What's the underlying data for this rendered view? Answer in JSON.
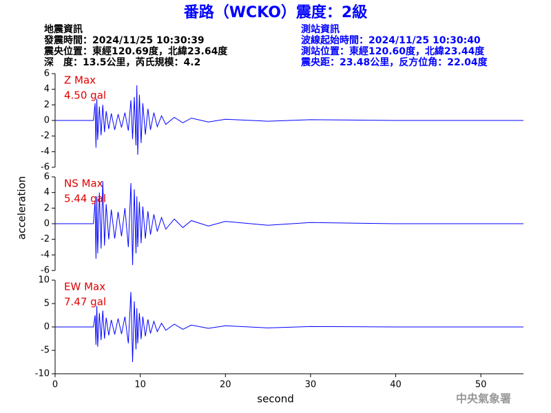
{
  "header": {
    "title": "番路（WCKO）震度：2級",
    "left_info": [
      "地震資訊",
      "發震時間：2024/11/25 10:30:39",
      "震央位置：東經120.69度，北緯23.64度",
      "深　度：13.5公里，芮氏規模：4.2"
    ],
    "right_info": [
      "測站資訊",
      "波線起始時間：2024/11/25 10:30:40",
      "測站位置：東經120.60度，北緯23.44度",
      "震央距：23.48公里，反方位角：22.04度"
    ]
  },
  "ylabel": "acceleration",
  "xlabel": "second",
  "footer": "中央氣象署",
  "chart_data": [
    {
      "type": "line",
      "annotations": [
        "Z Max",
        "4.50 gal"
      ],
      "color": "#0000ff",
      "xlim": [
        0,
        55
      ],
      "ylim": [
        -6,
        6
      ],
      "yticks": [
        -6,
        -4,
        -2,
        0,
        2,
        4,
        6
      ],
      "x": [
        0,
        4.5,
        4.7,
        4.8,
        4.9,
        5.0,
        5.2,
        5.4,
        5.6,
        5.8,
        6.0,
        6.3,
        6.6,
        7.0,
        7.4,
        7.8,
        8.2,
        8.6,
        8.9,
        9.1,
        9.3,
        9.5,
        9.6,
        9.7,
        9.9,
        10.1,
        10.3,
        10.6,
        10.9,
        11.2,
        11.6,
        12.0,
        12.5,
        13,
        14,
        15,
        16,
        18,
        20,
        25,
        30,
        40,
        55
      ],
      "values": [
        0,
        0,
        2.2,
        -3.5,
        2.8,
        -2.5,
        1.8,
        -1.9,
        2.0,
        -1.5,
        1.2,
        -1.1,
        0.9,
        -1.2,
        0.8,
        -0.9,
        1.0,
        -1.3,
        2.6,
        -2.4,
        3.0,
        -3.2,
        4.5,
        -4.4,
        3.3,
        -2.9,
        2.2,
        -1.8,
        1.5,
        -1.2,
        1.0,
        -0.8,
        0.6,
        -0.5,
        0.4,
        -0.3,
        0.3,
        -0.2,
        0.15,
        -0.1,
        0.1,
        0,
        0
      ]
    },
    {
      "type": "line",
      "annotations": [
        "NS Max",
        "5.44 gal"
      ],
      "color": "#0000ff",
      "xlim": [
        0,
        55
      ],
      "ylim": [
        -6,
        6
      ],
      "yticks": [
        -6,
        -4,
        -2,
        0,
        2,
        4,
        6
      ],
      "x": [
        0,
        4.5,
        4.7,
        4.8,
        4.9,
        5.0,
        5.2,
        5.4,
        5.6,
        5.8,
        6.0,
        6.3,
        6.6,
        7.0,
        7.4,
        7.8,
        8.2,
        8.6,
        8.9,
        9.1,
        9.3,
        9.5,
        9.6,
        9.7,
        9.9,
        10.1,
        10.3,
        10.6,
        10.9,
        11.2,
        11.6,
        12.0,
        12.5,
        13,
        14,
        15,
        16,
        18,
        20,
        25,
        30,
        40,
        55
      ],
      "values": [
        0,
        0,
        3.0,
        -4.5,
        3.5,
        -3.8,
        4.0,
        -3.2,
        5.44,
        -2.8,
        2.5,
        -2.0,
        1.8,
        -1.9,
        1.5,
        -1.6,
        2.0,
        -3.0,
        5.2,
        -5.3,
        4.4,
        -3.8,
        3.5,
        -3.0,
        2.8,
        -2.5,
        2.2,
        -1.9,
        1.6,
        -1.4,
        1.2,
        -1.0,
        0.8,
        -0.7,
        0.6,
        -0.5,
        0.4,
        -0.3,
        0.3,
        -0.2,
        0.15,
        0,
        0
      ]
    },
    {
      "type": "line",
      "annotations": [
        "EW Max",
        "7.47 gal"
      ],
      "color": "#0000ff",
      "xlim": [
        0,
        55
      ],
      "xticks": [
        0,
        10,
        20,
        30,
        40,
        50
      ],
      "ylim": [
        -10,
        10
      ],
      "yticks": [
        -10,
        -5,
        0,
        5,
        10
      ],
      "x": [
        0,
        4.5,
        4.7,
        4.8,
        4.9,
        5.0,
        5.2,
        5.4,
        5.6,
        5.8,
        6.0,
        6.3,
        6.6,
        7.0,
        7.4,
        7.8,
        8.2,
        8.6,
        8.9,
        9.1,
        9.3,
        9.5,
        9.6,
        9.7,
        9.9,
        10.1,
        10.3,
        10.6,
        10.9,
        11.2,
        11.6,
        12.0,
        12.5,
        13,
        14,
        15,
        16,
        18,
        20,
        25,
        30,
        40,
        55
      ],
      "values": [
        0,
        0,
        2.5,
        -3.8,
        4.5,
        -4.2,
        3.0,
        -2.8,
        3.5,
        -2.5,
        2.0,
        -1.8,
        1.5,
        -1.6,
        1.8,
        -1.5,
        2.2,
        -3.5,
        7.47,
        -7.5,
        5.5,
        -4.8,
        4.0,
        -3.5,
        3.0,
        -2.6,
        2.2,
        -2.0,
        1.6,
        -1.4,
        1.2,
        -1.0,
        0.8,
        -0.7,
        0.6,
        -0.5,
        0.4,
        -0.3,
        0.25,
        -0.2,
        0.1,
        0,
        0
      ]
    }
  ]
}
